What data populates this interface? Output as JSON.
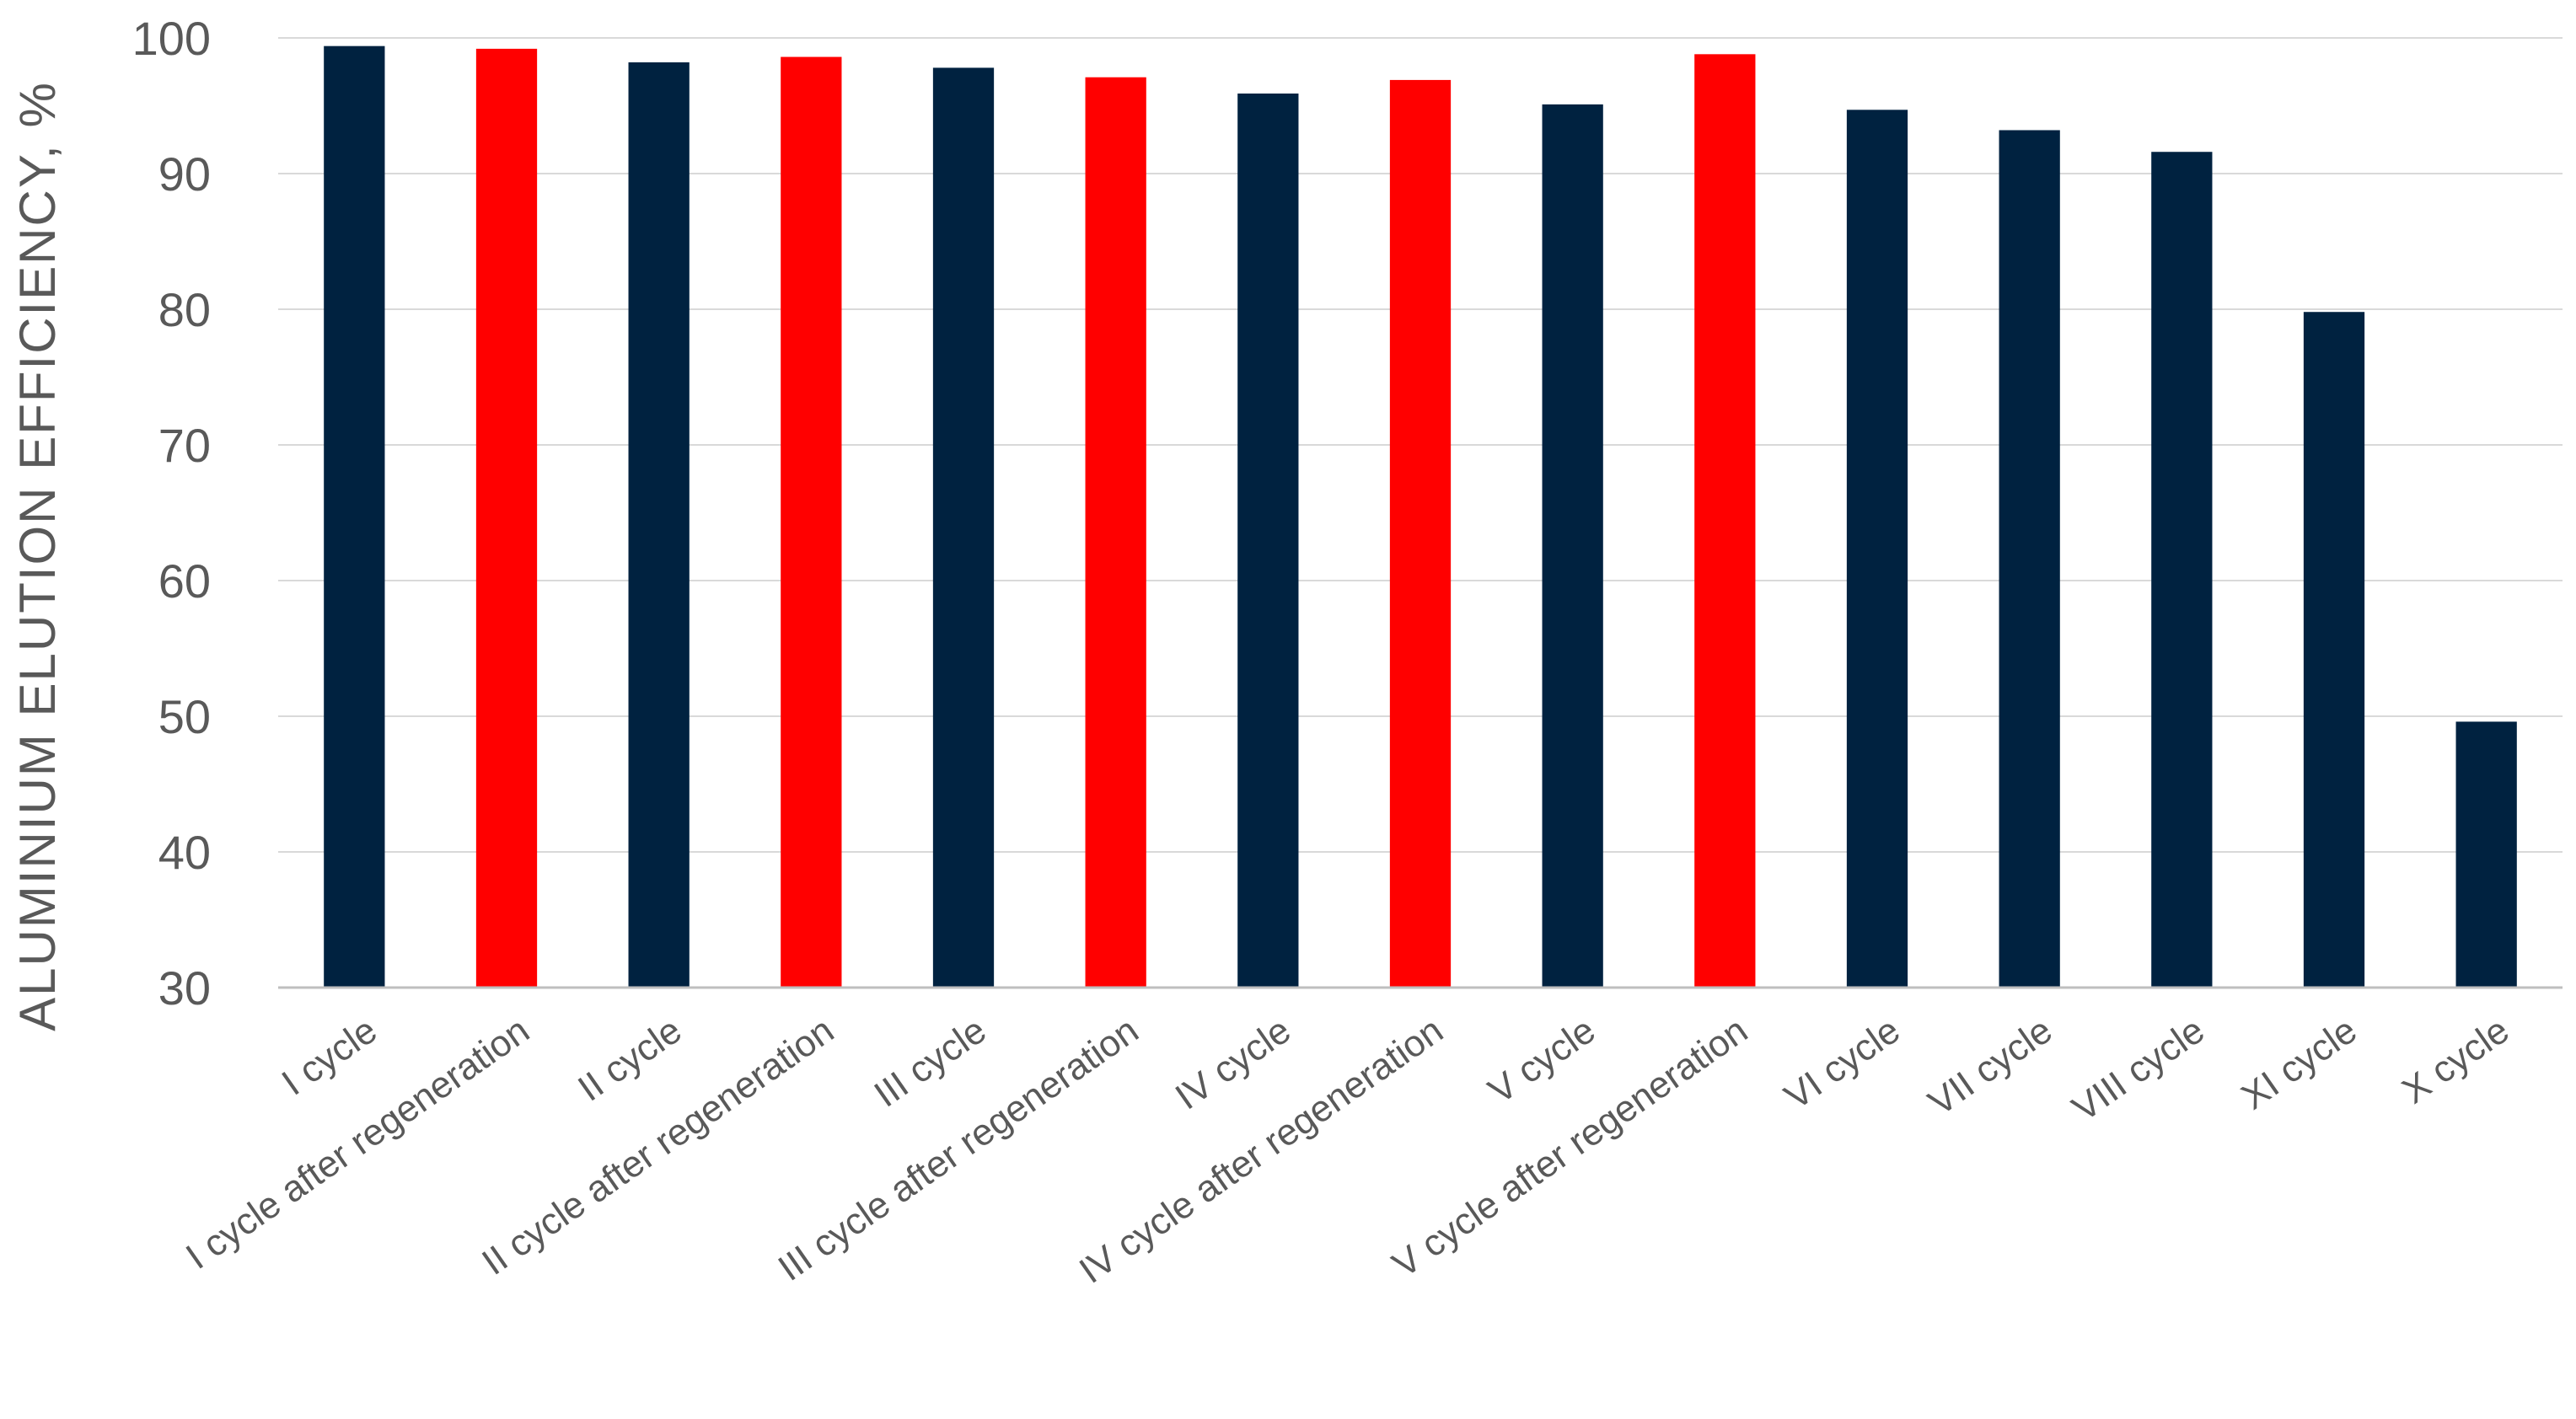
{
  "chart_data": {
    "type": "bar",
    "title": "",
    "xlabel": "",
    "ylabel": "ALUMINIUM  ELUTION  EFFICIENCY, %",
    "ylim": [
      30,
      100
    ],
    "yticks": [
      30,
      40,
      50,
      60,
      70,
      80,
      90,
      100
    ],
    "grid": true,
    "legend": "none",
    "colors": {
      "cycle": "#002240",
      "after_regeneration": "#ff0000",
      "grid": "#d9d9d9",
      "axis": "#bfbfbf",
      "text": "#595959"
    },
    "categories": [
      "I cycle",
      "I cycle after regeneration",
      "II cycle",
      "II cycle after regeneration",
      "III cycle",
      "III cycle after regeneration",
      "IV cycle",
      "IV cycle after regeneration",
      "V cycle",
      "V cycle  after regeneration",
      "VI cycle",
      "VII cycle",
      "VIII cycle",
      "XI cycle",
      "X cycle"
    ],
    "values": [
      99.4,
      99.2,
      98.2,
      98.6,
      97.8,
      97.1,
      95.9,
      96.9,
      95.1,
      98.8,
      94.7,
      93.2,
      91.6,
      79.8,
      49.6
    ],
    "bar_kind": [
      "cycle",
      "after_regeneration",
      "cycle",
      "after_regeneration",
      "cycle",
      "after_regeneration",
      "cycle",
      "after_regeneration",
      "cycle",
      "after_regeneration",
      "cycle",
      "cycle",
      "cycle",
      "cycle",
      "cycle"
    ]
  }
}
